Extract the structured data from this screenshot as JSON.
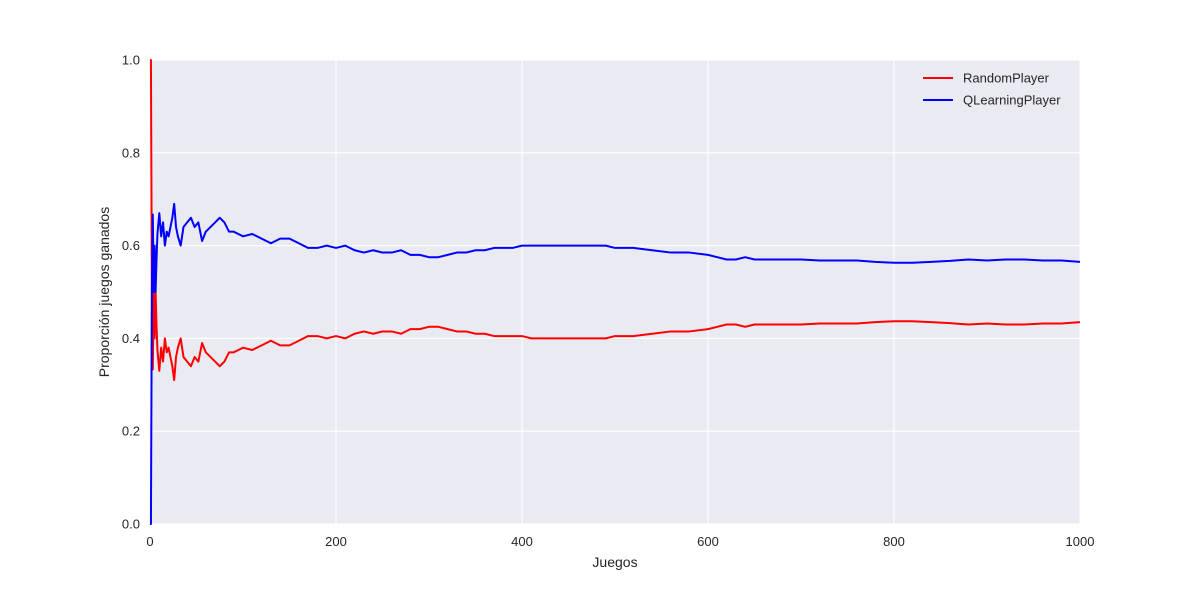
{
  "chart_data": {
    "type": "line",
    "title": "",
    "xlabel": "Juegos",
    "ylabel": "Proporción juegos ganados",
    "xlim": [
      0,
      1000
    ],
    "ylim": [
      0.0,
      1.0
    ],
    "xticks": [
      0,
      200,
      400,
      600,
      800,
      1000
    ],
    "xtick_labels": [
      "0",
      "200",
      "400",
      "600",
      "800",
      "1000"
    ],
    "yticks": [
      0.0,
      0.2,
      0.4,
      0.6,
      0.8,
      1.0
    ],
    "ytick_labels": [
      "0.0",
      "0.2",
      "0.4",
      "0.6",
      "0.8",
      "1.0"
    ],
    "grid": true,
    "legend_position": "top-right",
    "plot_background": "#EAEAF2",
    "grid_color": "#FFFFFF",
    "series": [
      {
        "name": "RandomPlayer",
        "color": "#FF0000",
        "x": [
          1,
          2,
          3,
          4,
          5,
          6,
          7,
          8,
          10,
          12,
          14,
          16,
          18,
          20,
          22,
          24,
          26,
          28,
          30,
          33,
          36,
          40,
          44,
          48,
          52,
          56,
          60,
          65,
          70,
          75,
          80,
          85,
          90,
          95,
          100,
          110,
          120,
          130,
          140,
          150,
          160,
          170,
          180,
          190,
          200,
          210,
          220,
          230,
          240,
          250,
          260,
          270,
          280,
          290,
          300,
          310,
          320,
          330,
          340,
          350,
          360,
          370,
          380,
          390,
          400,
          410,
          420,
          430,
          440,
          450,
          460,
          470,
          480,
          490,
          500,
          520,
          540,
          560,
          580,
          600,
          610,
          620,
          630,
          640,
          650,
          660,
          670,
          680,
          700,
          720,
          740,
          760,
          780,
          800,
          820,
          840,
          860,
          880,
          900,
          920,
          940,
          960,
          980,
          1000
        ],
        "y": [
          1.0,
          0.5,
          0.333,
          0.5,
          0.4,
          0.5,
          0.43,
          0.375,
          0.33,
          0.38,
          0.35,
          0.4,
          0.37,
          0.38,
          0.36,
          0.34,
          0.31,
          0.36,
          0.38,
          0.4,
          0.36,
          0.35,
          0.34,
          0.36,
          0.35,
          0.39,
          0.37,
          0.36,
          0.35,
          0.34,
          0.35,
          0.37,
          0.37,
          0.375,
          0.38,
          0.375,
          0.385,
          0.395,
          0.385,
          0.385,
          0.395,
          0.405,
          0.405,
          0.4,
          0.405,
          0.4,
          0.41,
          0.415,
          0.41,
          0.415,
          0.415,
          0.41,
          0.42,
          0.42,
          0.425,
          0.425,
          0.42,
          0.415,
          0.415,
          0.41,
          0.41,
          0.405,
          0.405,
          0.405,
          0.405,
          0.4,
          0.4,
          0.4,
          0.4,
          0.4,
          0.4,
          0.4,
          0.4,
          0.4,
          0.405,
          0.405,
          0.41,
          0.415,
          0.415,
          0.42,
          0.425,
          0.43,
          0.43,
          0.425,
          0.43,
          0.43,
          0.43,
          0.43,
          0.43,
          0.432,
          0.432,
          0.432,
          0.435,
          0.437,
          0.437,
          0.435,
          0.433,
          0.43,
          0.432,
          0.43,
          0.43,
          0.432,
          0.432,
          0.435
        ]
      },
      {
        "name": "QLearningPlayer",
        "color": "#0000FF",
        "x": [
          1,
          2,
          3,
          4,
          5,
          6,
          7,
          8,
          10,
          12,
          14,
          16,
          18,
          20,
          22,
          24,
          26,
          28,
          30,
          33,
          36,
          40,
          44,
          48,
          52,
          56,
          60,
          65,
          70,
          75,
          80,
          85,
          90,
          95,
          100,
          110,
          120,
          130,
          140,
          150,
          160,
          170,
          180,
          190,
          200,
          210,
          220,
          230,
          240,
          250,
          260,
          270,
          280,
          290,
          300,
          310,
          320,
          330,
          340,
          350,
          360,
          370,
          380,
          390,
          400,
          410,
          420,
          430,
          440,
          450,
          460,
          470,
          480,
          490,
          500,
          520,
          540,
          560,
          580,
          600,
          610,
          620,
          630,
          640,
          650,
          660,
          670,
          680,
          700,
          720,
          740,
          760,
          780,
          800,
          820,
          840,
          860,
          880,
          900,
          920,
          940,
          960,
          980,
          1000
        ],
        "y": [
          0.0,
          0.5,
          0.667,
          0.5,
          0.6,
          0.5,
          0.57,
          0.625,
          0.67,
          0.62,
          0.65,
          0.6,
          0.63,
          0.62,
          0.64,
          0.66,
          0.69,
          0.64,
          0.62,
          0.6,
          0.64,
          0.65,
          0.66,
          0.64,
          0.65,
          0.61,
          0.63,
          0.64,
          0.65,
          0.66,
          0.65,
          0.63,
          0.63,
          0.625,
          0.62,
          0.625,
          0.615,
          0.605,
          0.615,
          0.615,
          0.605,
          0.595,
          0.595,
          0.6,
          0.595,
          0.6,
          0.59,
          0.585,
          0.59,
          0.585,
          0.585,
          0.59,
          0.58,
          0.58,
          0.575,
          0.575,
          0.58,
          0.585,
          0.585,
          0.59,
          0.59,
          0.595,
          0.595,
          0.595,
          0.6,
          0.6,
          0.6,
          0.6,
          0.6,
          0.6,
          0.6,
          0.6,
          0.6,
          0.6,
          0.595,
          0.595,
          0.59,
          0.585,
          0.585,
          0.58,
          0.575,
          0.57,
          0.57,
          0.575,
          0.57,
          0.57,
          0.57,
          0.57,
          0.57,
          0.568,
          0.568,
          0.568,
          0.565,
          0.563,
          0.563,
          0.565,
          0.567,
          0.57,
          0.568,
          0.57,
          0.57,
          0.568,
          0.568,
          0.565
        ]
      }
    ]
  }
}
